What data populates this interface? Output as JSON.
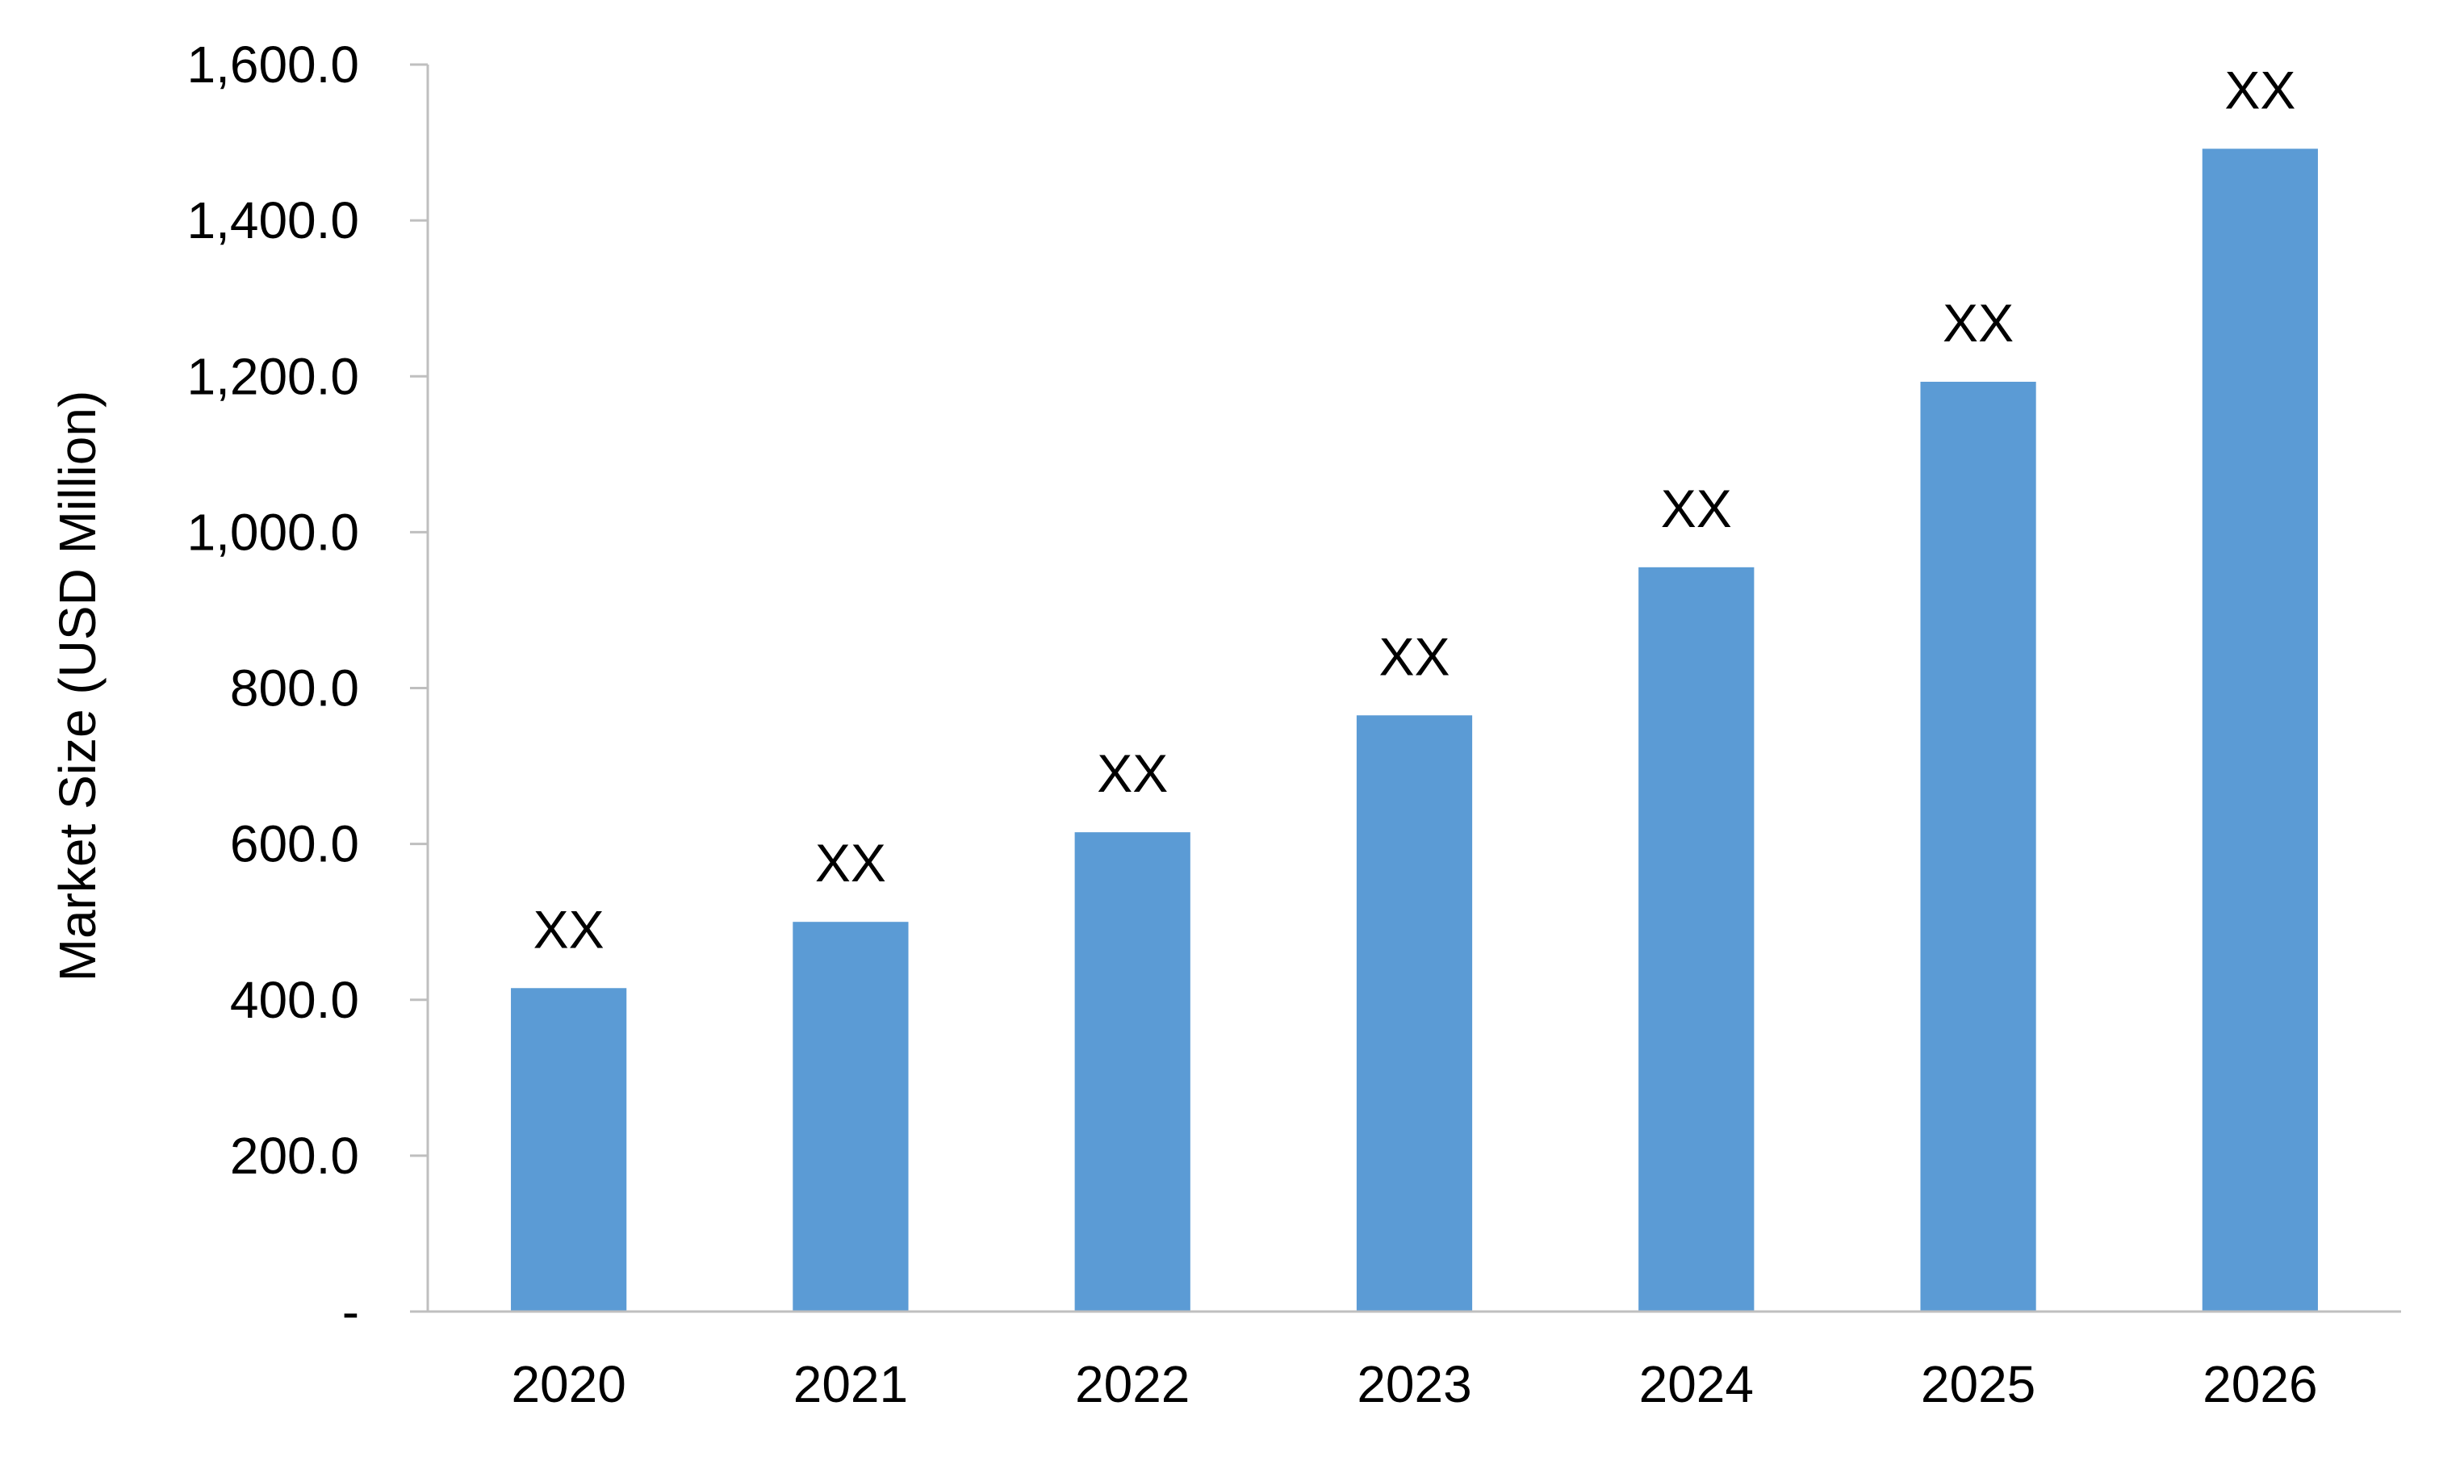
{
  "chart_data": {
    "type": "bar",
    "title": "",
    "xlabel": "",
    "ylabel": "Market Size (USD Million)",
    "categories": [
      "2020",
      "2021",
      "2022",
      "2023",
      "2024",
      "2025",
      "2026"
    ],
    "values": [
      415,
      500,
      615,
      765,
      955,
      1193,
      1492
    ],
    "data_labels": [
      "XX",
      "XX",
      "XX",
      "XX",
      "XX",
      "XX",
      "XX"
    ],
    "ylim": [
      0,
      1600
    ],
    "yticks": [
      0,
      200,
      400,
      600,
      800,
      1000,
      1200,
      1400,
      1600
    ],
    "ytick_labels": [
      "-",
      "200.0",
      "400.0",
      "600.0",
      "800.0",
      "1,000.0",
      "1,200.0",
      "1,400.0",
      "1,600.0"
    ],
    "grid": false,
    "legend": "none",
    "bar_color": "#5B9BD5",
    "axis_color": "#BFBFBF"
  }
}
